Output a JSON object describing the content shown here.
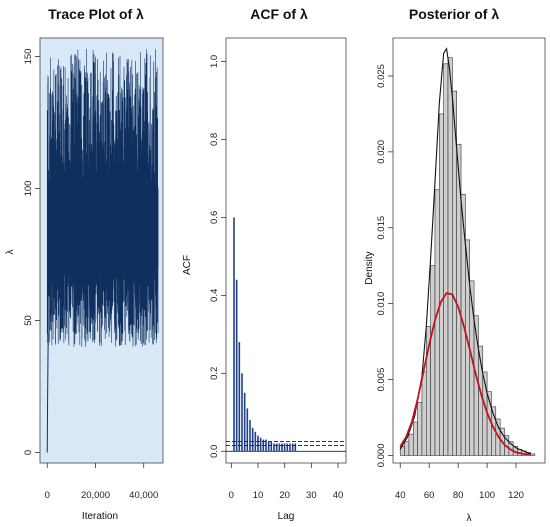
{
  "chart_data": [
    {
      "type": "line",
      "title": "Trace Plot of λ",
      "xlabel": "Iteration",
      "ylabel": "λ",
      "xlim": [
        -3000,
        48000
      ],
      "ylim": [
        -4,
        157
      ],
      "x_ticks": [
        0,
        20000,
        40000
      ],
      "x_tick_labels": [
        "0",
        "20,000",
        "40,000"
      ],
      "y_ticks": [
        0,
        50,
        100,
        150
      ],
      "y_tick_labels": [
        "0",
        "50",
        "100",
        "150"
      ],
      "iterations": 46000,
      "burn_in_start": [
        0,
        20,
        45
      ],
      "band_median": [
        70,
        100
      ],
      "band_extreme": [
        40,
        153
      ],
      "colors": {
        "line": "#0f2f5f",
        "band": "#0a2a55",
        "panel_bg": "#d8e8f6"
      }
    },
    {
      "type": "bar",
      "title": "ACF of λ",
      "xlabel": "Lag",
      "ylabel": "ACF",
      "xlim": [
        -2,
        43
      ],
      "ylim": [
        -0.03,
        1.06
      ],
      "x_ticks": [
        0,
        10,
        20,
        30,
        40
      ],
      "x_tick_labels": [
        "0",
        "10",
        "20",
        "30",
        "40"
      ],
      "y_ticks": [
        0,
        0.2,
        0.4,
        0.6,
        0.8,
        1.0
      ],
      "y_tick_labels": [
        "0.0",
        "0.2",
        "0.4",
        "0.6",
        "0.8",
        "1.0"
      ],
      "lags": [
        1,
        2,
        3,
        4,
        5,
        6,
        7,
        8,
        9,
        10,
        11,
        12,
        13,
        14,
        15,
        16,
        17,
        18,
        19,
        20,
        21,
        22,
        23,
        24
      ],
      "values": [
        0.6,
        0.44,
        0.28,
        0.2,
        0.15,
        0.11,
        0.08,
        0.06,
        0.05,
        0.04,
        0.035,
        0.03,
        0.03,
        0.025,
        0.025,
        0.02,
        0.02,
        0.02,
        0.02,
        0.02,
        0.02,
        0.02,
        0.02,
        0.02
      ],
      "confidence_bounds": [
        0.015,
        0.025
      ],
      "colors": {
        "bars": "#1f3f8a",
        "bounds": "#0a1a4a"
      }
    },
    {
      "type": "histogram",
      "title": "Posterior of λ",
      "xlabel": "λ",
      "ylabel": "Density",
      "xlim": [
        35,
        140
      ],
      "ylim": [
        -0.0005,
        0.0275
      ],
      "x_ticks": [
        40,
        60,
        80,
        100,
        120
      ],
      "x_tick_labels": [
        "40",
        "60",
        "80",
        "100",
        "120"
      ],
      "y_ticks": [
        0,
        0.005,
        0.01,
        0.015,
        0.02,
        0.025
      ],
      "y_tick_labels": [
        "0.000",
        "0.005",
        "0.010",
        "0.015",
        "0.020",
        "0.025"
      ],
      "bin_edges": [
        40,
        43,
        46,
        49,
        52,
        55,
        58,
        61,
        64,
        67,
        70,
        73,
        76,
        79,
        82,
        85,
        88,
        91,
        94,
        97,
        100,
        103,
        106,
        109,
        112,
        115,
        118,
        121,
        124,
        127,
        130,
        133
      ],
      "density": [
        0.0006,
        0.0009,
        0.0014,
        0.0022,
        0.0035,
        0.0055,
        0.0085,
        0.0125,
        0.0175,
        0.0225,
        0.0258,
        0.0262,
        0.024,
        0.0205,
        0.0172,
        0.0142,
        0.0115,
        0.0092,
        0.0072,
        0.0055,
        0.0042,
        0.0032,
        0.0024,
        0.0018,
        0.0013,
        0.0009,
        0.0006,
        0.0004,
        0.0003,
        0.0002,
        0.0001
      ],
      "curves": [
        {
          "color": "#111111",
          "x": [
            40,
            45,
            50,
            55,
            58,
            61,
            64,
            67,
            70,
            72,
            74,
            76,
            79,
            82,
            85,
            88,
            91,
            94,
            97,
            100,
            104,
            108,
            112,
            116,
            120,
            125,
            130
          ],
          "y": [
            0.0004,
            0.0012,
            0.0026,
            0.0052,
            0.0085,
            0.013,
            0.018,
            0.0232,
            0.0265,
            0.0268,
            0.0255,
            0.0236,
            0.0202,
            0.0168,
            0.0139,
            0.0112,
            0.0089,
            0.007,
            0.0054,
            0.0041,
            0.0028,
            0.0018,
            0.0012,
            0.0008,
            0.0005,
            0.0003,
            0.0001
          ]
        },
        {
          "color": "#c0141c",
          "x": [
            40,
            44,
            48,
            52,
            56,
            60,
            64,
            68,
            72,
            76,
            80,
            84,
            88,
            92,
            96,
            100,
            104,
            108,
            112,
            116,
            120,
            125,
            130
          ],
          "y": [
            0.0006,
            0.0012,
            0.0022,
            0.0037,
            0.0055,
            0.0073,
            0.0089,
            0.0101,
            0.0107,
            0.0106,
            0.0098,
            0.0085,
            0.007,
            0.0054,
            0.004,
            0.0028,
            0.0019,
            0.0012,
            0.0007,
            0.0004,
            0.0002,
            0.0001,
            5e-05
          ]
        }
      ],
      "colors": {
        "bars": "#cfcfcf",
        "bar_edge": "#333333"
      }
    }
  ]
}
